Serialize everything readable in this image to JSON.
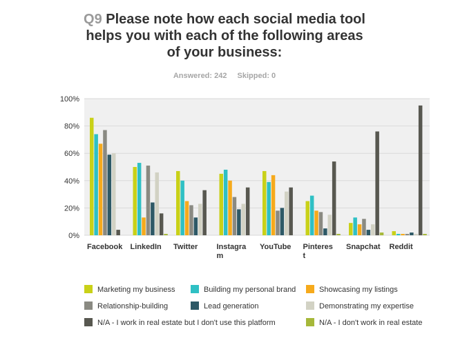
{
  "question": {
    "number": "Q9",
    "title_lines": [
      "Please note how each social media tool",
      "helps you with each of the following areas",
      "of your business:"
    ],
    "answered": "Answered: 242",
    "skipped": "Skipped: 0"
  },
  "chart_data": {
    "type": "bar",
    "title": "Please note how each social media tool helps you with each of the following areas of your business:",
    "categories": [
      "Facebook",
      "LinkedIn",
      "Twitter",
      "Instagram",
      "YouTube",
      "Pinterest",
      "Snapchat",
      "Reddit"
    ],
    "category_label_lines": [
      [
        "Facebook"
      ],
      [
        "LinkedIn"
      ],
      [
        "Twitter"
      ],
      [
        "Instagra",
        "m"
      ],
      [
        "YouTube"
      ],
      [
        "Pinteres",
        "t"
      ],
      [
        "Snapchat"
      ],
      [
        "Reddit"
      ]
    ],
    "ylim": [
      0,
      100
    ],
    "y_ticks": [
      "0%",
      "20%",
      "40%",
      "60%",
      "80%",
      "100%"
    ],
    "grid": true,
    "legend_placement": "bottom",
    "series": [
      {
        "name": "Marketing my business",
        "color": "#c9d118",
        "values": [
          86,
          50,
          47,
          45,
          47,
          25,
          9,
          3
        ]
      },
      {
        "name": "Building my personal brand",
        "color": "#2fc0c4",
        "values": [
          74,
          53,
          40,
          48,
          39,
          29,
          13,
          1
        ]
      },
      {
        "name": "Showcasing my listings",
        "color": "#f6aa1c",
        "values": [
          67,
          13,
          25,
          40,
          44,
          18,
          8,
          1
        ]
      },
      {
        "name": "Relationship-building",
        "color": "#8a8a82",
        "values": [
          77,
          51,
          22,
          28,
          18,
          17,
          12,
          1
        ]
      },
      {
        "name": "Lead generation",
        "color": "#2e5966",
        "values": [
          59,
          24,
          13,
          19,
          20,
          5,
          4,
          2
        ]
      },
      {
        "name": "Demonstrating my expertise",
        "color": "#d2d2c4",
        "values": [
          60,
          46,
          23,
          23,
          32,
          15,
          8,
          1
        ]
      },
      {
        "name": "N/A - I work in real estate but I don't use this platform",
        "color": "#585850",
        "values": [
          4,
          16,
          33,
          35,
          35,
          54,
          76,
          95
        ]
      },
      {
        "name": "N/A - I don't work in real estate",
        "color": "#a6b83a",
        "values": [
          0,
          1,
          0,
          0,
          0,
          1,
          2,
          1
        ]
      }
    ]
  }
}
